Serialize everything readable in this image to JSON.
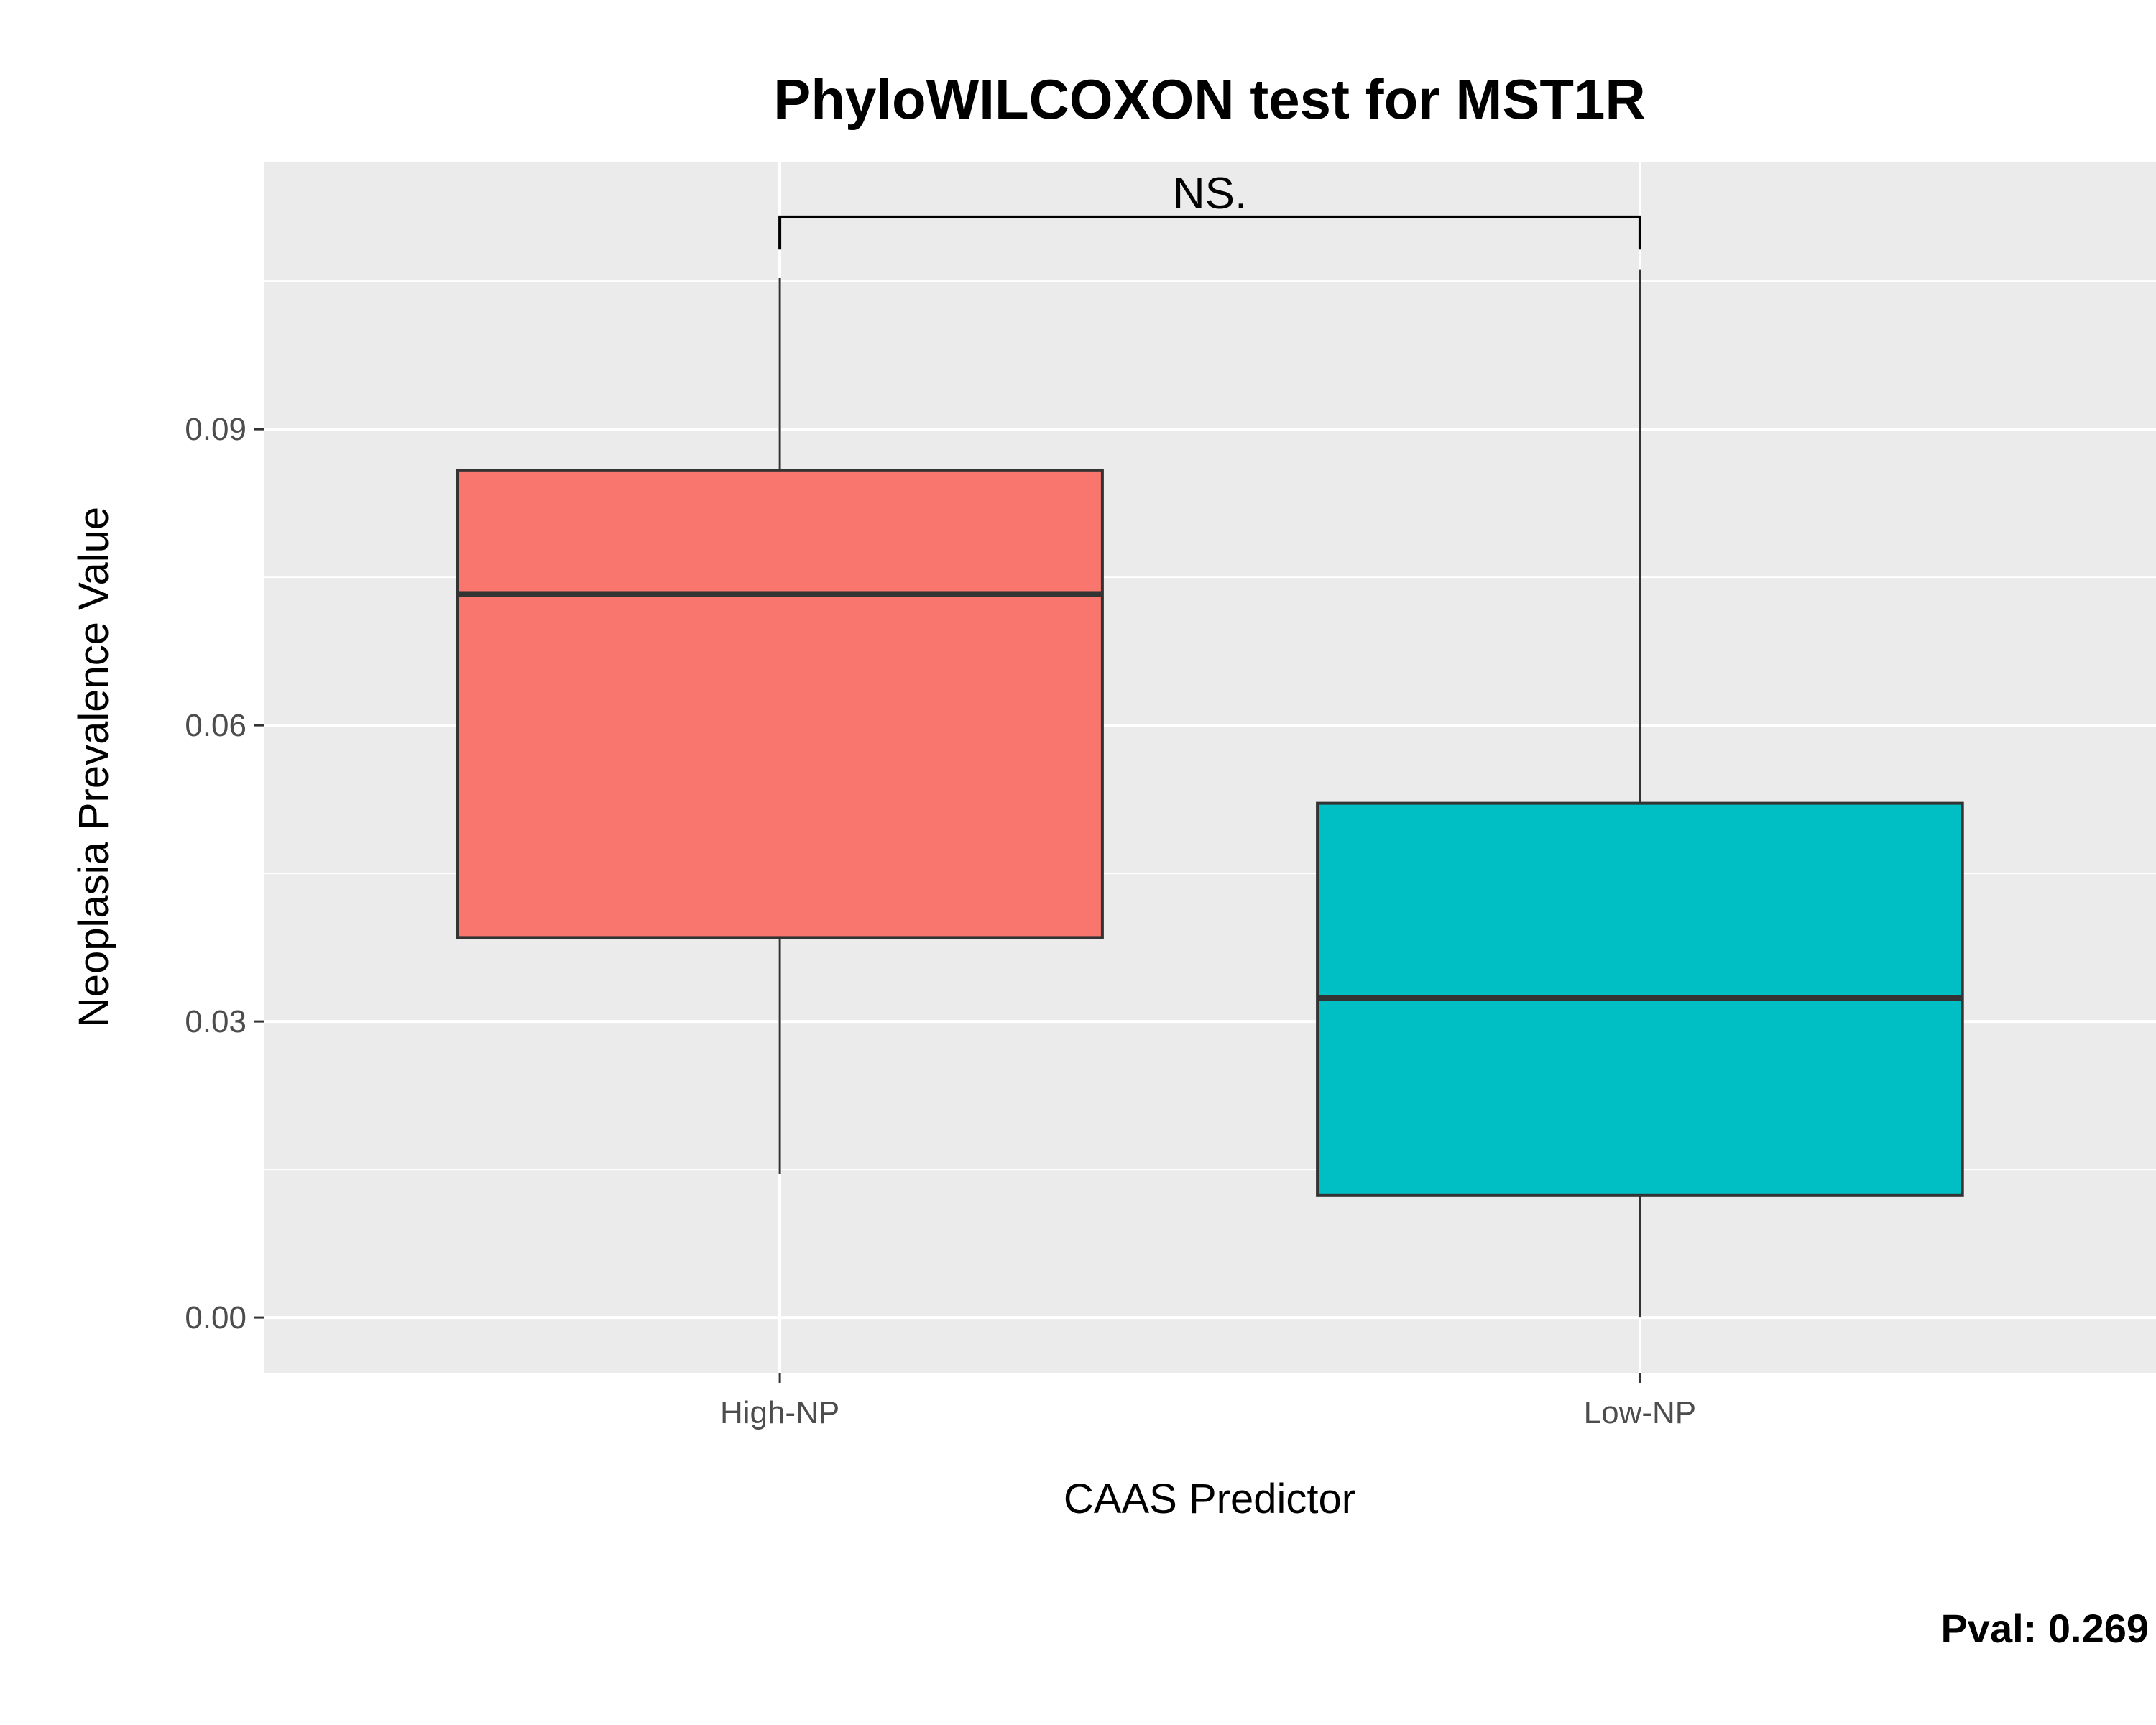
{
  "chart_data": {
    "type": "box",
    "title": "PhyloWILCOXON test for MST1R",
    "xlabel": "CAAS Predictor",
    "ylabel": "Neoplasia Prevalence Value",
    "categories": [
      "High-NP",
      "Low-NP"
    ],
    "y_ticks": [
      0.0,
      0.03,
      0.06,
      0.09
    ],
    "y_tick_labels": [
      "0.00",
      "0.03",
      "0.06",
      "0.09"
    ],
    "ylim": [
      -0.0056,
      0.1171
    ],
    "boxes": [
      {
        "category": "High-NP",
        "whisker_low": 0.0145,
        "q1": 0.0385,
        "median": 0.0733,
        "q3": 0.0858,
        "whisker_high": 0.1053,
        "fill": "#F8766D"
      },
      {
        "category": "Low-NP",
        "whisker_low": 0.0,
        "q1": 0.0124,
        "median": 0.0324,
        "q3": 0.0521,
        "whisker_high": 0.1062,
        "fill": "#00BFC4"
      }
    ],
    "significance": {
      "label": "NS.",
      "y": 0.1115,
      "tip_low": 0.1082
    },
    "grid": true,
    "panel_background": "#EBEBEB",
    "grid_color": "#FFFFFF",
    "box_outline": "#333333"
  },
  "footer": {
    "pval_label": "Pval:  0.269"
  }
}
